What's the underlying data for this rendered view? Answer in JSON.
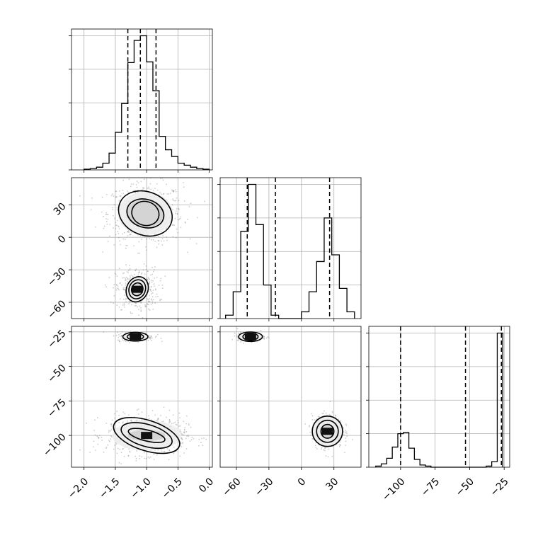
{
  "chart_data": {
    "type": "corner",
    "parameters": [
      {
        "range": [
          -2.2,
          0.05
        ],
        "ticks": [
          -2.0,
          -1.5,
          -1.0,
          -0.5,
          0.0
        ],
        "tick_labels": [
          "−2.0",
          "−1.5",
          "−1.0",
          "−0.5",
          "0.0"
        ],
        "quantiles": [
          -1.3,
          -1.1,
          -0.85
        ],
        "histogram": {
          "edges": [
            -2.0,
            -1.9,
            -1.8,
            -1.7,
            -1.6,
            -1.5,
            -1.4,
            -1.3,
            -1.2,
            -1.1,
            -1.0,
            -0.9,
            -0.8,
            -0.7,
            -0.6,
            -0.5,
            -0.4,
            -0.3,
            -0.2,
            -0.1,
            0.0
          ],
          "counts": [
            1,
            2,
            4,
            10,
            25,
            56,
            99,
            160,
            193,
            200,
            161,
            118,
            50,
            30,
            20,
            10,
            7,
            4,
            2,
            1
          ]
        }
      },
      {
        "range": [
          -75,
          55
        ],
        "ticks": [
          -60,
          -30,
          0,
          30
        ],
        "tick_labels": [
          "−60",
          "−30",
          "0",
          "30"
        ],
        "quantiles": [
          -50,
          -24,
          26
        ],
        "histogram": {
          "edges": [
            -70,
            -63,
            -56,
            -49,
            -42,
            -35,
            -28,
            -21,
            -14,
            -7,
            0,
            7,
            14,
            21,
            28,
            35,
            42,
            49
          ],
          "counts": [
            1,
            8,
            26,
            40,
            28,
            10,
            1,
            0,
            0,
            0,
            2,
            8,
            17,
            30,
            19,
            9,
            2
          ]
        }
      },
      {
        "range": [
          -123,
          -21
        ],
        "ticks": [
          -100,
          -75,
          -50,
          -25
        ],
        "tick_labels": [
          "−100",
          "−75",
          "−50",
          "−25"
        ],
        "quantiles": [
          -100,
          -53,
          -27
        ],
        "histogram": {
          "edges": [
            -118,
            -114,
            -110,
            -106,
            -102,
            -98,
            -94,
            -90,
            -86,
            -82,
            -78,
            -74,
            -70,
            -66,
            -62,
            -58,
            -54,
            -50,
            -46,
            -42,
            -38,
            -34,
            -30,
            -26
          ],
          "counts": [
            1,
            3,
            8,
            18,
            30,
            31,
            17,
            7,
            2,
            1,
            0,
            0,
            0,
            0,
            0,
            0,
            0,
            0,
            0,
            0,
            1,
            5,
            120
          ]
        }
      }
    ],
    "panels_2d": [
      {
        "x_param": 0,
        "y_param": 1,
        "clusters": [
          {
            "center": [
              -1.02,
              22
            ],
            "spread": [
              0.3,
              14
            ],
            "points": 650,
            "levels": [
              [
                0.3,
                0.07,
                13,
                16
              ],
              [
                0.22,
                0.05,
                11,
                17
              ],
              [
                0.44,
                0.12,
                20,
                22
              ]
            ]
          },
          {
            "center": [
              -1.15,
              -48
            ],
            "spread": [
              0.17,
              10
            ],
            "points": 360,
            "levels": [
              [
                0.09,
                0.03,
                6,
                18
              ],
              [
                0.13,
                0.05,
                9,
                22
              ],
              [
                0.17,
                0.07,
                12,
                26
              ]
            ]
          }
        ]
      },
      {
        "x_param": 0,
        "y_param": 2,
        "clusters": [
          {
            "center": [
              -1.0,
              -100
            ],
            "spread": [
              0.32,
              7
            ],
            "points": 700,
            "levels": [
              [
                0.3,
                0.06,
                4,
                14
              ],
              [
                0.42,
                0.1,
                8,
                16
              ],
              [
                0.55,
                0.15,
                11,
                18
              ]
            ]
          },
          {
            "center": [
              -1.18,
              -28.5
            ],
            "spread": [
              0.15,
              1.6
            ],
            "points": 220,
            "levels": [
              [
                0.08,
                0.02,
                1.5,
                0
              ],
              [
                0.13,
                0.04,
                2.3,
                0
              ],
              [
                0.2,
                0.06,
                3.2,
                0
              ]
            ]
          }
        ]
      },
      {
        "x_param": 1,
        "y_param": 2,
        "clusters": [
          {
            "center": [
              -47,
              -28.5
            ],
            "spread": [
              6,
              1.6
            ],
            "points": 220,
            "levels": [
              [
                4,
                1,
                1.5,
                0
              ],
              [
                7,
                1.5,
                2.6,
                0
              ],
              [
                11,
                2,
                3.4,
                0
              ]
            ]
          },
          {
            "center": [
              24,
              -97
            ],
            "spread": [
              7,
              6
            ],
            "points": 500,
            "levels": [
              [
                6,
                1,
                5,
                0
              ],
              [
                10,
                2,
                8,
                0
              ],
              [
                14,
                3,
                11,
                0
              ]
            ]
          }
        ]
      }
    ]
  }
}
